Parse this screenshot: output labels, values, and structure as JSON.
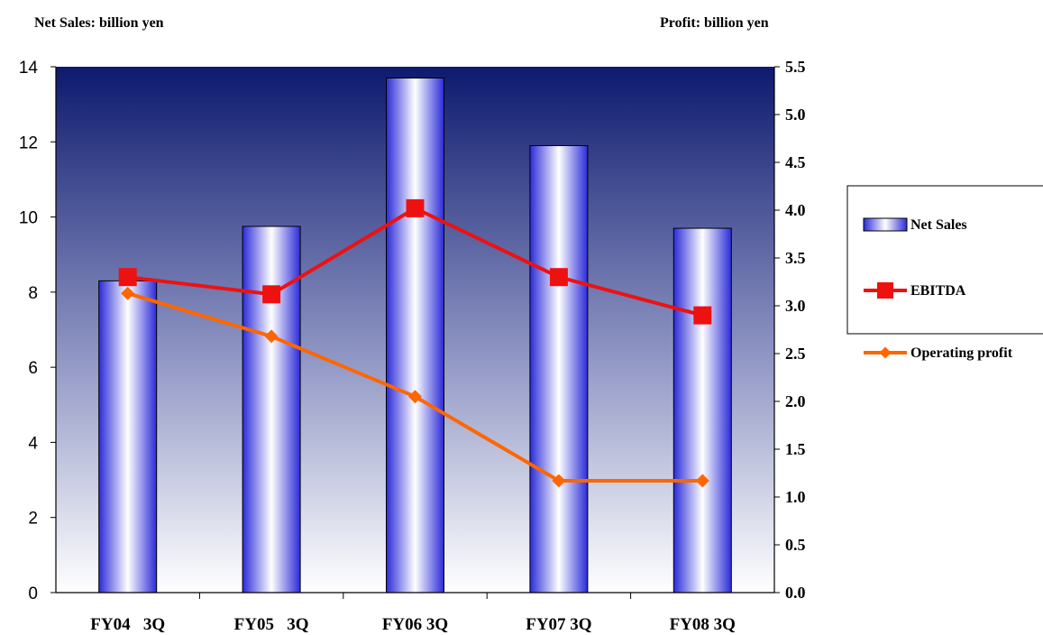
{
  "chart_data": {
    "type": "bar",
    "categories": [
      "FY04   3Q",
      "FY05   3Q",
      "FY06 3Q",
      "FY07 3Q",
      "FY08 3Q"
    ],
    "left_axis": {
      "label": "Net Sales: billion yen",
      "range": [
        0,
        14
      ],
      "ticks": [
        "0",
        "2",
        "4",
        "6",
        "8",
        "10",
        "12",
        "14"
      ]
    },
    "right_axis": {
      "label": "Profit: billion yen",
      "range": [
        0,
        5.5
      ],
      "ticks": [
        "0.0",
        "0.5",
        "1.0",
        "1.5",
        "2.0",
        "2.5",
        "3.0",
        "3.5",
        "4.0",
        "4.5",
        "5.0",
        "5.5"
      ]
    },
    "series": [
      {
        "name": "Net Sales",
        "type": "bar",
        "axis": "left",
        "values": [
          8.3,
          9.75,
          13.7,
          11.9,
          9.7
        ],
        "color": "#2b2bd9"
      },
      {
        "name": "EBITDA",
        "type": "line",
        "axis": "right",
        "marker": "square",
        "values": [
          3.3,
          3.12,
          4.02,
          3.3,
          2.9
        ],
        "color": "#ee1111"
      },
      {
        "name": "Operating profit",
        "type": "line",
        "axis": "right",
        "marker": "diamond",
        "values": [
          3.13,
          2.68,
          2.05,
          1.17,
          1.17
        ],
        "color": "#ff6600"
      }
    ],
    "legend": {
      "position": "right",
      "entries": [
        "Net Sales",
        "EBITDA",
        "Operating profit"
      ]
    },
    "background_gradient": [
      "#0d1a6e",
      "#ffffff"
    ],
    "grid": false
  }
}
